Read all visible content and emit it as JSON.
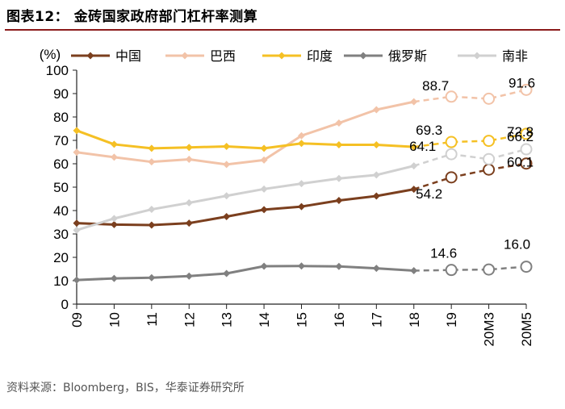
{
  "figure": {
    "title": "图表12：  金砖国家政府部门杠杆率测算",
    "source": "资料来源：Bloomberg，BIS，华泰证券研究所"
  },
  "chart_data": {
    "type": "line",
    "y_unit_label": "(%)",
    "ylim": [
      0,
      100
    ],
    "yticks": [
      0,
      10,
      20,
      30,
      40,
      50,
      60,
      70,
      80,
      90,
      100
    ],
    "categories": [
      "09",
      "10",
      "11",
      "12",
      "13",
      "14",
      "15",
      "16",
      "17",
      "18",
      "19",
      "20M3",
      "20M5"
    ],
    "forecast_from_index": 10,
    "legend_position": "top",
    "series": [
      {
        "name": "中国",
        "color": "#7b3f1e",
        "marker": "diamond",
        "values": [
          34.6,
          34.0,
          33.8,
          34.6,
          37.4,
          40.4,
          41.7,
          44.3,
          46.2,
          49.1,
          54.2,
          57.5,
          60.1
        ]
      },
      {
        "name": "巴西",
        "color": "#f2c3a8",
        "marker": "diamond",
        "values": [
          64.9,
          62.8,
          60.8,
          61.9,
          59.7,
          61.6,
          72.0,
          77.4,
          83.1,
          86.5,
          88.7,
          87.8,
          91.6
        ]
      },
      {
        "name": "印度",
        "color": "#f5c024",
        "marker": "diamond",
        "values": [
          74.2,
          68.3,
          66.6,
          67.0,
          67.4,
          66.6,
          68.7,
          68.1,
          68.1,
          67.2,
          69.3,
          69.8,
          72.8
        ]
      },
      {
        "name": "俄罗斯",
        "color": "#808080",
        "marker": "diamond",
        "values": [
          10.3,
          11.0,
          11.3,
          12.0,
          13.1,
          16.2,
          16.3,
          16.1,
          15.3,
          14.3,
          14.6,
          14.8,
          16.0
        ]
      },
      {
        "name": "南非",
        "color": "#d0d0d0",
        "marker": "diamond",
        "values": [
          31.6,
          36.6,
          40.5,
          43.3,
          46.3,
          49.2,
          51.5,
          53.7,
          55.2,
          59.1,
          64.1,
          62.0,
          66.2
        ]
      }
    ],
    "data_labels": [
      {
        "series": 1,
        "index": 10,
        "text": "88.7"
      },
      {
        "series": 1,
        "index": 12,
        "text": "91.6"
      },
      {
        "series": 2,
        "index": 10,
        "text": "69.3"
      },
      {
        "series": 2,
        "index": 12,
        "text": "72.8"
      },
      {
        "series": 4,
        "index": 10,
        "text": "64.1"
      },
      {
        "series": 4,
        "index": 12,
        "text": "66.2"
      },
      {
        "series": 0,
        "index": 10,
        "text": "54.2"
      },
      {
        "series": 0,
        "index": 12,
        "text": "60.1"
      },
      {
        "series": 3,
        "index": 10,
        "text": "14.6"
      },
      {
        "series": 3,
        "index": 12,
        "text": "16.0"
      }
    ]
  }
}
